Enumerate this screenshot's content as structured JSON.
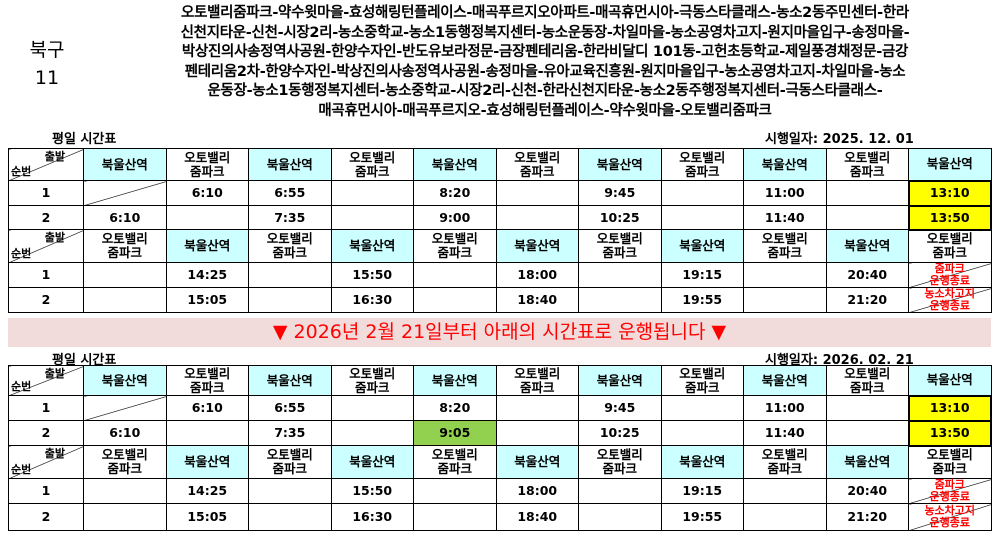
{
  "route": {
    "name": "북구",
    "number": "11",
    "path_lines": [
      "오토밸리줌파크-약수윗마을-효성해링턴플레이스-매곡푸르지오아파트-매곡휴먼시아-극동스타클래스-농소2동주민센터-한라",
      "신천지타운-신천-시장2리-농소중학교-농소1동행정복지센터-농소운동장-차일마을-농소공영차고지-원지마을입구-송정마을-",
      "박상진의사송정역사공원-한양수자인-반도유보라정문-금장펜테리움-한라비달디 101동-고헌초등학교-제일풍경채정문-금강",
      "펜테리움2차-한양수자인-박상진의사송정역사공원-송정마을-유아교육진흥원-원지마을입구-농소공영차고지-차일마을-농소",
      "운동장-농소1동행정복지센터-농소중학교-시장2리-신천-한라신천지타운-농소2동주행정복지센터-극동스타클래스-",
      "매곡휴먼시아-매곡푸르지오-효성해링턴플레이스-약수윗마을-오토밸리줌파크"
    ]
  },
  "notice": "▼ 2026년 2월 21일부터 아래의 시간표로 운행됩니다 ▼",
  "corner": {
    "depart": "출발",
    "seq": "순번"
  },
  "stops": {
    "a": "북울산역",
    "b": "오토밸리\n줌파크"
  },
  "colors": {
    "station": "#ccffff",
    "highlight": "#ffff00",
    "changed": "#92d050",
    "end": "#ff0000",
    "banner": "#f2dcdb"
  },
  "timetables": [
    {
      "title": "평일 시간표",
      "effective": "시행일자: 2025. 12. 01",
      "am": [
        {
          "seq": "1",
          "times": [
            "",
            "6:10",
            "6:55",
            "",
            "8:20",
            "",
            "9:45",
            "",
            "11:00",
            "",
            "13:10"
          ]
        },
        {
          "seq": "2",
          "times": [
            "6:10",
            "",
            "7:35",
            "",
            "9:00",
            "",
            "10:25",
            "",
            "11:40",
            "",
            "13:50"
          ]
        }
      ],
      "pm": [
        {
          "seq": "1",
          "times": [
            "",
            "14:25",
            "",
            "15:50",
            "",
            "18:00",
            "",
            "19:15",
            "",
            "20:40",
            "줌파크\n운행종료"
          ]
        },
        {
          "seq": "2",
          "times": [
            "",
            "15:05",
            "",
            "16:30",
            "",
            "18:40",
            "",
            "19:55",
            "",
            "21:20",
            "농소차고지\n운행종료"
          ]
        }
      ]
    },
    {
      "title": "평일 시간표",
      "effective": "시행일자: 2026. 02. 21",
      "am": [
        {
          "seq": "1",
          "times": [
            "",
            "6:10",
            "6:55",
            "",
            "8:20",
            "",
            "9:45",
            "",
            "11:00",
            "",
            "13:10"
          ]
        },
        {
          "seq": "2",
          "times": [
            "6:10",
            "",
            "7:35",
            "",
            "9:05",
            "",
            "10:25",
            "",
            "11:40",
            "",
            "13:50"
          ]
        }
      ],
      "pm": [
        {
          "seq": "1",
          "times": [
            "",
            "14:25",
            "",
            "15:50",
            "",
            "18:00",
            "",
            "19:15",
            "",
            "20:40",
            "줌파크\n운행종료"
          ]
        },
        {
          "seq": "2",
          "times": [
            "",
            "15:05",
            "",
            "16:30",
            "",
            "18:40",
            "",
            "19:55",
            "",
            "21:20",
            "농소차고지\n운행종료"
          ]
        }
      ]
    }
  ]
}
